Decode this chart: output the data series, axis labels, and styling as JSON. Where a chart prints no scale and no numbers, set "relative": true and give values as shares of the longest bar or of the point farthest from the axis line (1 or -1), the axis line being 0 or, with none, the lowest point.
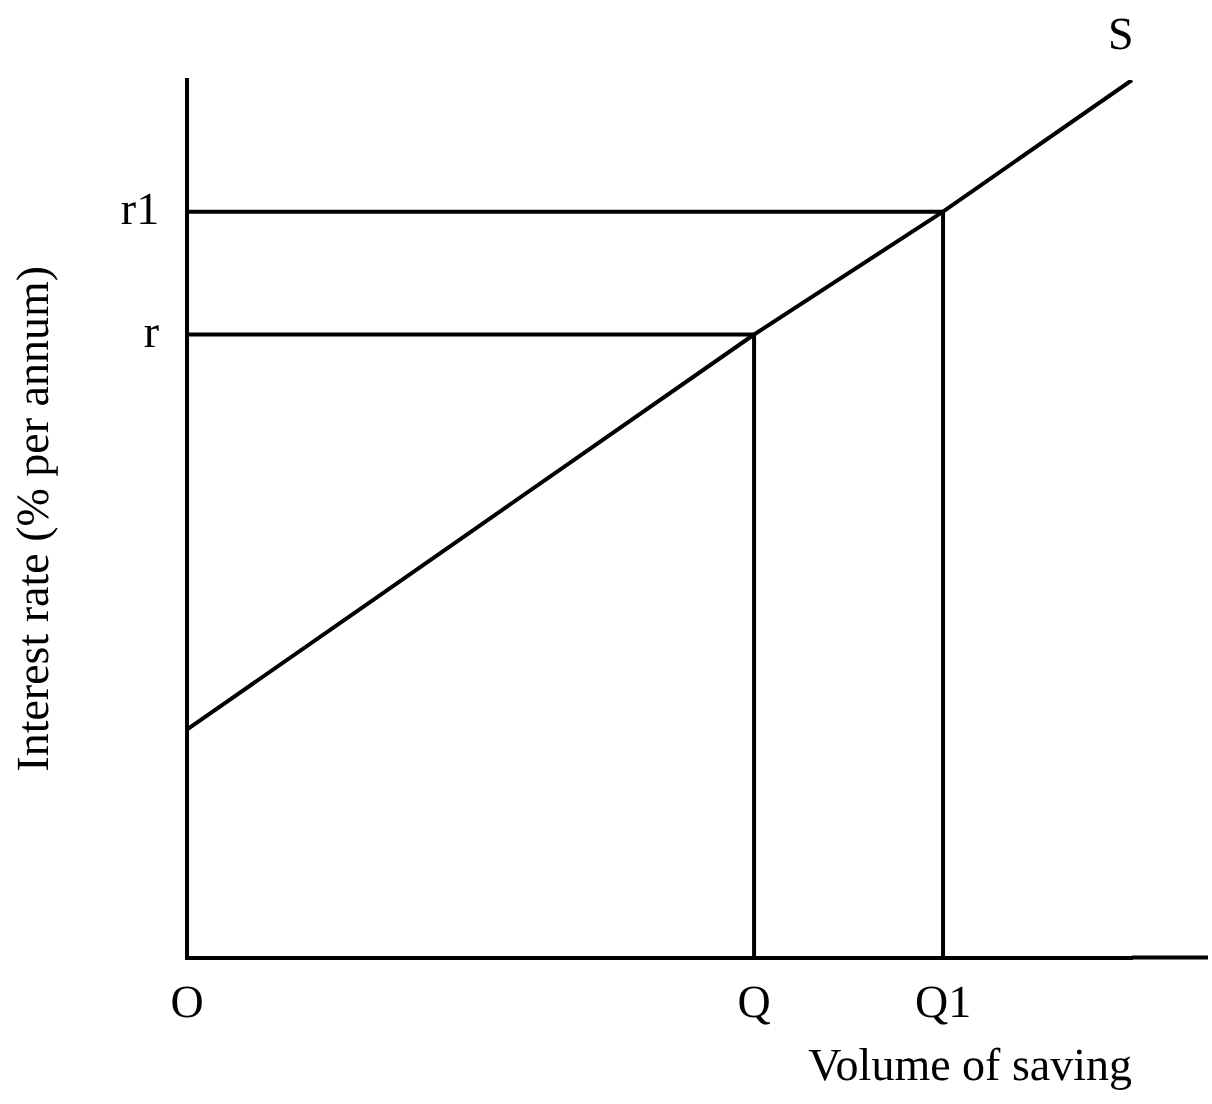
{
  "chart_data": {
    "type": "line",
    "relative": true,
    "xlabel": "Volume of saving",
    "ylabel": "Interest rate (% per annum)",
    "legend": false,
    "grid": false,
    "marker": "none",
    "categories": [
      "O",
      null,
      null,
      "Q",
      "Q1",
      null
    ],
    "series": [
      {
        "name": "S",
        "color": "#000000",
        "values": [
          0.26,
          0.41,
          0.56,
          0.71,
          0.85,
          1
        ]
      }
    ],
    "ref_lines": [
      {
        "axis": "y",
        "value": 0.71,
        "label": "r",
        "color": "#000000"
      },
      {
        "axis": "y",
        "value": 0.85,
        "label": "r1",
        "color": "#000000"
      },
      {
        "axis": "x",
        "value": "Q",
        "color": "#000000"
      },
      {
        "axis": "x",
        "value": "Q1",
        "color": "#000000"
      }
    ]
  }
}
